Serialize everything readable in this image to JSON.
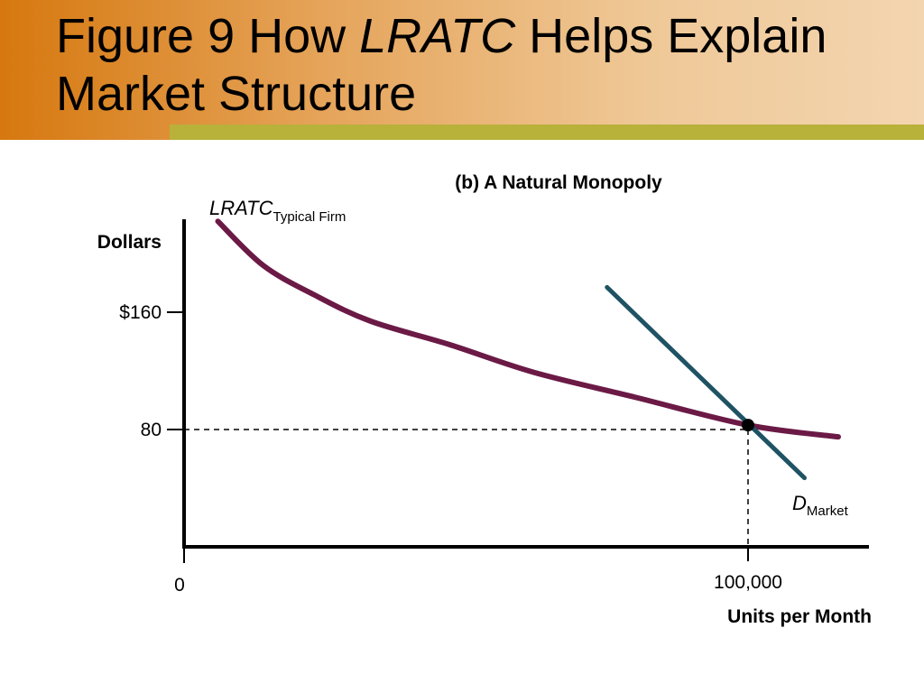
{
  "slide": {
    "title_prefix": "Figure 9 How ",
    "title_italic": "LRATC",
    "title_suffix_line1": " Helps Explain",
    "title_line2": "Market Structure"
  },
  "chart_data": {
    "type": "line",
    "title": "(b) A Natural Monopoly",
    "ylabel": "Dollars",
    "xlabel": "Units per Month",
    "y_ticks": [
      {
        "value": 160,
        "label": "$160"
      },
      {
        "value": 80,
        "label": "80"
      }
    ],
    "x_ticks": [
      {
        "value": 0,
        "label": "0"
      },
      {
        "value": 100000,
        "label": "100,000"
      }
    ],
    "grid": false,
    "series": [
      {
        "name": "LRATC",
        "name_sub": "Typical Firm",
        "color": "#6b1a46",
        "points": [
          [
            6000,
            222
          ],
          [
            14000,
            192
          ],
          [
            23000,
            172
          ],
          [
            33000,
            154
          ],
          [
            47000,
            138
          ],
          [
            62000,
            119
          ],
          [
            80000,
            102
          ],
          [
            100000,
            83
          ],
          [
            116000,
            75
          ]
        ]
      },
      {
        "name": "D",
        "name_sub": "Market",
        "color": "#1f5364",
        "points": [
          [
            75000,
            177
          ],
          [
            110000,
            47
          ]
        ]
      }
    ],
    "annotations": [
      {
        "type": "point",
        "x": 100000,
        "y": 83
      },
      {
        "type": "guide",
        "x": 100000,
        "y": 80
      }
    ]
  }
}
